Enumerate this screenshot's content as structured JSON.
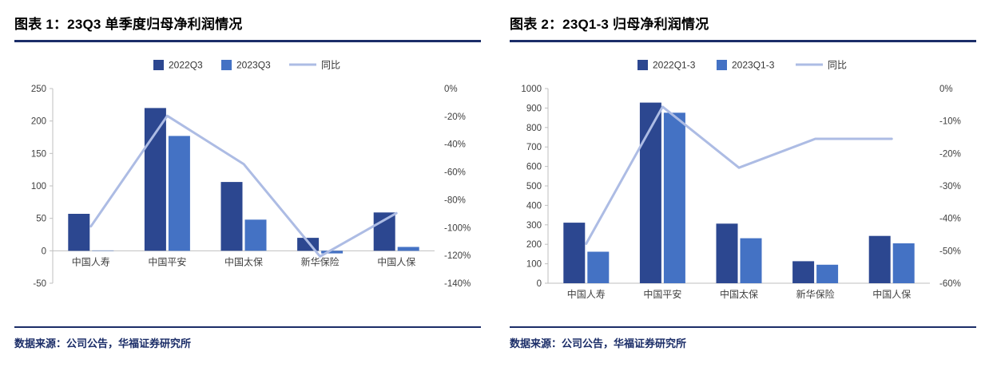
{
  "page": {
    "background": "#ffffff"
  },
  "colors": {
    "title_rule": "#1b2d68",
    "source_rule": "#1b2d68",
    "source_text": "#1b2d68",
    "axis_line": "#bfbfbf"
  },
  "chart_data": [
    {
      "type": "bar",
      "subtype": "bar+line-combo",
      "title": "图表 1：23Q3 单季度归母净利润情况",
      "source": "数据来源：公司公告，华福证券研究所",
      "categories": [
        "中国人寿",
        "中国平安",
        "中国太保",
        "新华保险",
        "中国人保"
      ],
      "bar_series": [
        {
          "name": "2022Q3",
          "color": "#2c4790",
          "values": [
            57,
            220,
            106,
            20,
            59
          ]
        },
        {
          "name": "2023Q3",
          "color": "#4472c4",
          "values": [
            0.5,
            177,
            48,
            -4,
            6
          ]
        }
      ],
      "line_series": {
        "name": "同比",
        "color": "#adbce4",
        "values": [
          -99.1,
          -19.6,
          -54.3,
          -120.7,
          -89.6
        ],
        "axis": "right"
      },
      "y_left": {
        "min": -50,
        "max": 250,
        "step": 50
      },
      "y_right": {
        "min": -140,
        "max": 0,
        "step": 20,
        "suffix": "%"
      },
      "legend_position": "top",
      "grid": false
    },
    {
      "type": "bar",
      "subtype": "bar+line-combo",
      "title": "图表 2：23Q1-3 归母净利润情况",
      "source": "数据来源：公司公告，华福证券研究所",
      "categories": [
        "中国人寿",
        "中国平安",
        "中国太保",
        "新华保险",
        "中国人保"
      ],
      "bar_series": [
        {
          "name": "2022Q1-3",
          "color": "#2c4790",
          "values": [
            311,
            928,
            306,
            113,
            243
          ]
        },
        {
          "name": "2023Q1-3",
          "color": "#4472c4",
          "values": [
            162,
            876,
            231,
            95,
            205
          ]
        }
      ],
      "line_series": {
        "name": "同比",
        "color": "#adbce4",
        "values": [
          -47.8,
          -5.6,
          -24.4,
          -15.5,
          -15.5
        ],
        "axis": "right"
      },
      "y_left": {
        "min": 0,
        "max": 1000,
        "step": 100
      },
      "y_right": {
        "min": -60,
        "max": 0,
        "step": 10,
        "suffix": "%"
      },
      "legend_position": "top",
      "grid": false
    }
  ]
}
